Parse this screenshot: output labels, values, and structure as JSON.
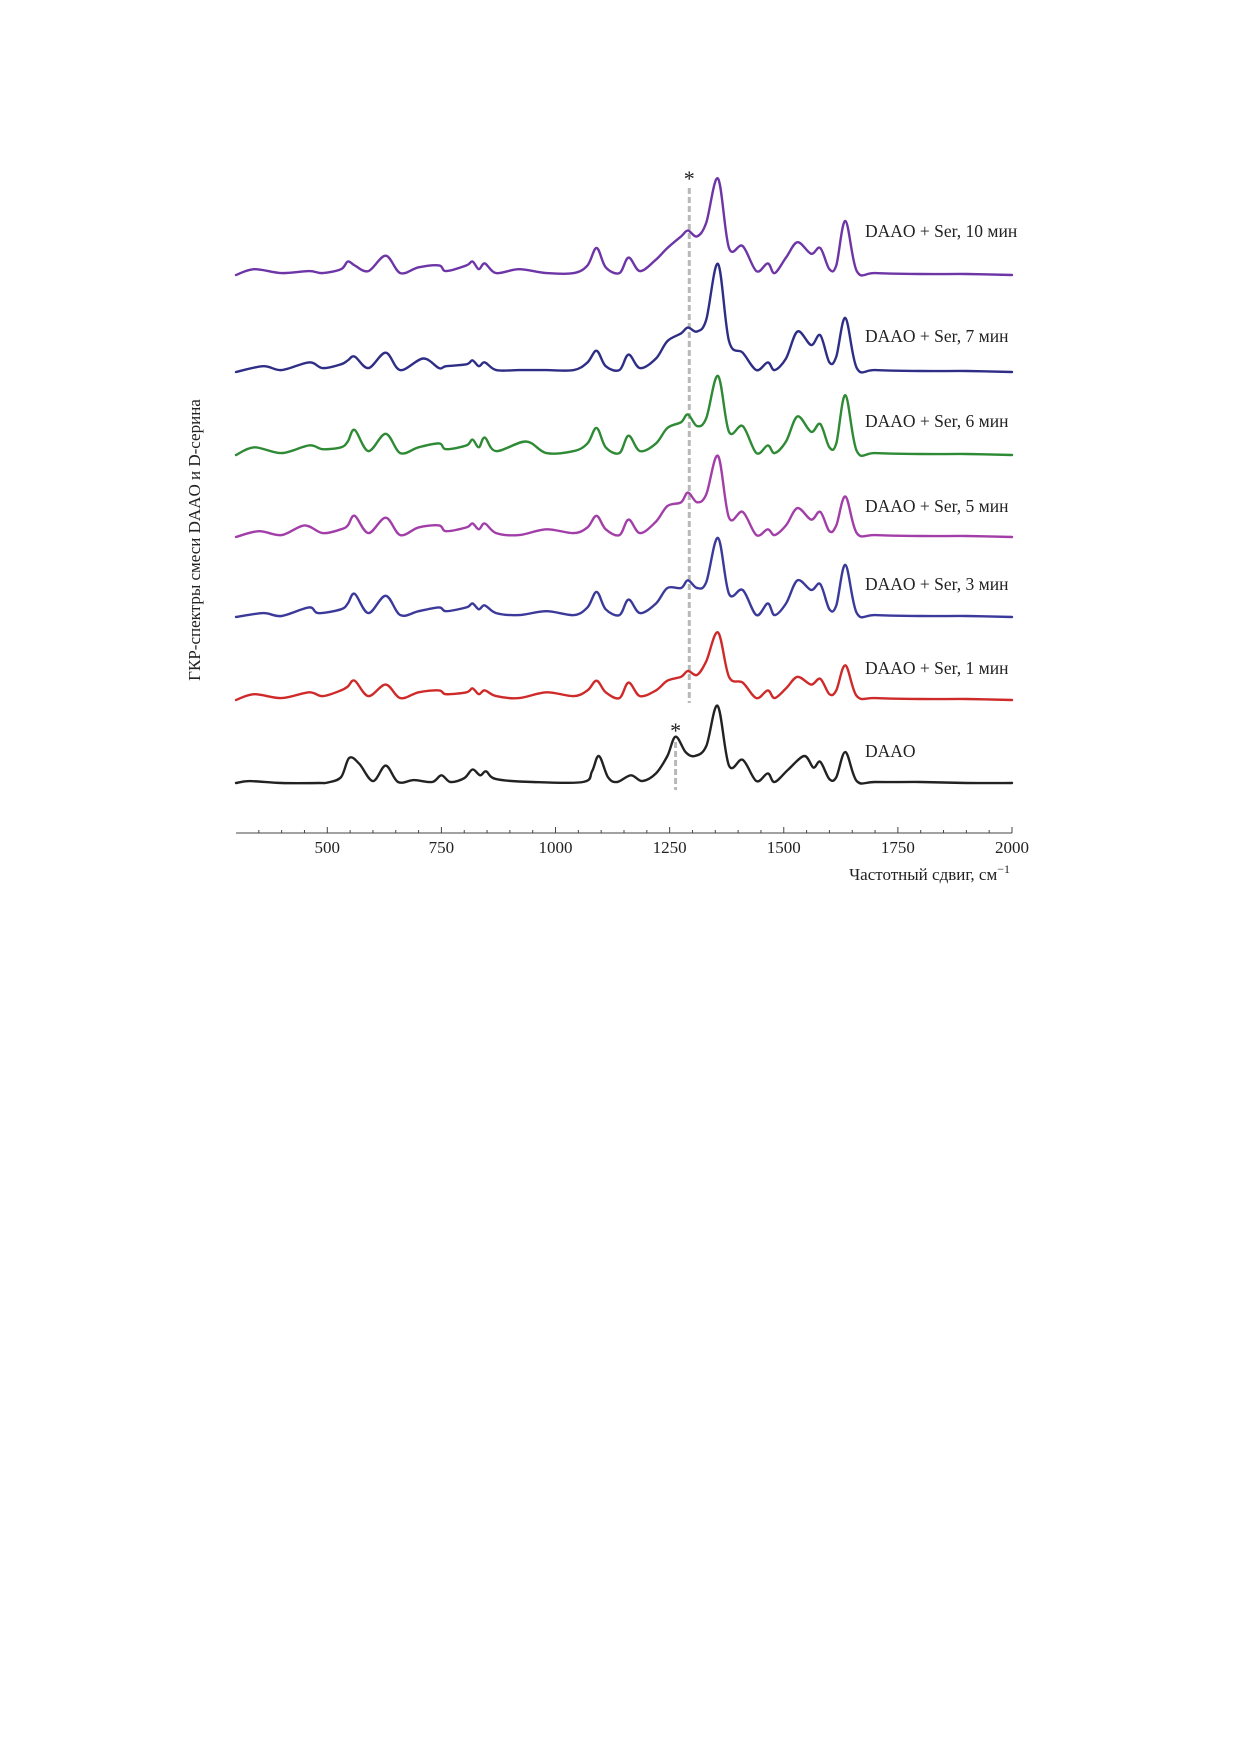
{
  "chart_data": {
    "type": "line",
    "xlabel": "Частотный сдвиг, см",
    "xlabel_sup": "−1",
    "ylabel": "ГКР-спектры смеси DAAO и D-серина",
    "xlim": [
      300,
      2000
    ],
    "xticks": [
      500,
      750,
      1000,
      1250,
      1500,
      1750,
      2000
    ],
    "xtick_labels": [
      "500",
      "750",
      "1000",
      "1250",
      "1500",
      "1750",
      "2000"
    ],
    "y_tick_labels": false,
    "grid": false,
    "markers": [
      {
        "label": "*",
        "x": 1263,
        "applies_to": "DAAO"
      },
      {
        "label": "*",
        "x": 1293,
        "applies_to": "DAAO + Ser"
      }
    ],
    "series": [
      {
        "name": "DAAO",
        "color": "#222222",
        "x": [
          300,
          330,
          400,
          480,
          500,
          530,
          548,
          570,
          600,
          628,
          655,
          690,
          730,
          750,
          770,
          800,
          818,
          835,
          848,
          870,
          950,
          1060,
          1080,
          1095,
          1115,
          1135,
          1165,
          1190,
          1220,
          1245,
          1263,
          1285,
          1305,
          1330,
          1355,
          1380,
          1410,
          1440,
          1465,
          1480,
          1510,
          1545,
          1565,
          1580,
          1600,
          1615,
          1635,
          1660,
          1700,
          1800,
          1900,
          2000
        ],
        "y": [
          0,
          1,
          0,
          0,
          0.2,
          3,
          13,
          10,
          1,
          9,
          0.5,
          1.5,
          0.5,
          4,
          0.5,
          2.5,
          7,
          4,
          6,
          2,
          0.5,
          0.5,
          6,
          14,
          3,
          0.5,
          4,
          1,
          5,
          14,
          24,
          16,
          14,
          19,
          40,
          9,
          12,
          1,
          5,
          0.5,
          7,
          14,
          8,
          11,
          2,
          3,
          16,
          1,
          0.5,
          0.5,
          0,
          0
        ]
      },
      {
        "name": "DAAO + Ser, 1 мин",
        "color": "#cf2a2a",
        "x": [
          300,
          340,
          400,
          460,
          490,
          530,
          545,
          560,
          590,
          628,
          660,
          700,
          745,
          760,
          805,
          818,
          832,
          845,
          870,
          920,
          980,
          1040,
          1070,
          1090,
          1110,
          1140,
          1160,
          1185,
          1220,
          1245,
          1275,
          1290,
          1310,
          1330,
          1356,
          1380,
          1410,
          1440,
          1465,
          1480,
          1505,
          1530,
          1560,
          1580,
          1600,
          1615,
          1635,
          1660,
          1700,
          1800,
          1900,
          2000
        ],
        "y": [
          0,
          3,
          1,
          4,
          2,
          5,
          7,
          10,
          2,
          8,
          1,
          4,
          5,
          3,
          4,
          6,
          3,
          5,
          2,
          1,
          4,
          2,
          5,
          10,
          4,
          1,
          9,
          2,
          5,
          10,
          12,
          15,
          13,
          20,
          35,
          12,
          9,
          1,
          5,
          1,
          6,
          12,
          8,
          11,
          3,
          5,
          18,
          2,
          1,
          0.5,
          0.5,
          0
        ]
      },
      {
        "name": "DAAO + Ser, 3 мин",
        "color": "#3b3a9a",
        "x": [
          300,
          360,
          400,
          460,
          480,
          530,
          545,
          560,
          590,
          628,
          660,
          700,
          745,
          760,
          805,
          818,
          832,
          845,
          870,
          920,
          980,
          1040,
          1070,
          1090,
          1110,
          1140,
          1160,
          1185,
          1220,
          1245,
          1275,
          1290,
          1310,
          1330,
          1356,
          1380,
          1410,
          1440,
          1465,
          1480,
          1505,
          1530,
          1560,
          1580,
          1600,
          1615,
          1635,
          1660,
          1700,
          1800,
          1900,
          2000
        ],
        "y": [
          0,
          2,
          0.5,
          5,
          2,
          4,
          7,
          12,
          2,
          11,
          1,
          3,
          5,
          3,
          5,
          7,
          4,
          6,
          2,
          1,
          3,
          1,
          5,
          13,
          4,
          1,
          9,
          2,
          7,
          15,
          15,
          19,
          15,
          18,
          41,
          12,
          14,
          1,
          7,
          1,
          7,
          19,
          14,
          17,
          4,
          6,
          27,
          2,
          1,
          0.5,
          0.5,
          0
        ]
      },
      {
        "name": "DAAO + Ser, 5 мин",
        "color": "#a23ea8",
        "x": [
          300,
          350,
          400,
          450,
          490,
          530,
          545,
          560,
          590,
          628,
          660,
          700,
          745,
          760,
          805,
          818,
          832,
          845,
          870,
          920,
          980,
          1040,
          1070,
          1090,
          1110,
          1140,
          1160,
          1185,
          1220,
          1245,
          1275,
          1290,
          1310,
          1330,
          1356,
          1380,
          1410,
          1440,
          1465,
          1480,
          1505,
          1530,
          1560,
          1580,
          1600,
          1615,
          1635,
          1660,
          1700,
          1800,
          1900,
          2000
        ],
        "y": [
          0,
          3,
          1,
          6,
          2,
          4,
          6,
          11,
          2,
          10,
          1,
          5,
          6,
          3,
          5,
          7,
          4,
          7,
          2,
          1,
          4,
          2,
          5,
          11,
          4,
          1,
          9,
          2,
          8,
          16,
          18,
          23,
          18,
          22,
          42,
          10,
          13,
          1,
          4,
          1,
          6,
          15,
          9,
          13,
          3,
          6,
          21,
          2,
          1,
          0.5,
          0.5,
          0
        ]
      },
      {
        "name": "DAAO + Ser, 6 мин",
        "color": "#2e8a35",
        "x": [
          300,
          340,
          400,
          460,
          490,
          530,
          545,
          560,
          590,
          628,
          660,
          700,
          745,
          760,
          805,
          818,
          832,
          845,
          870,
          935,
          980,
          1040,
          1070,
          1090,
          1110,
          1140,
          1160,
          1185,
          1220,
          1245,
          1275,
          1290,
          1310,
          1330,
          1356,
          1380,
          1410,
          1440,
          1465,
          1480,
          1505,
          1530,
          1560,
          1580,
          1600,
          1615,
          1635,
          1660,
          1700,
          1800,
          1900,
          2000
        ],
        "y": [
          0,
          4,
          1,
          5,
          3,
          4,
          7,
          13,
          2,
          11,
          1,
          4,
          6,
          3,
          5,
          8,
          4,
          9,
          2,
          7,
          1,
          2,
          6,
          14,
          4,
          1,
          10,
          2,
          6,
          14,
          17,
          21,
          15,
          19,
          41,
          12,
          15,
          1,
          5,
          1,
          7,
          20,
          12,
          16,
          4,
          6,
          31,
          2,
          1,
          0.5,
          0.5,
          0
        ]
      },
      {
        "name": "DAAO + Ser, 7 мин",
        "color": "#2f2e86",
        "x": [
          300,
          360,
          400,
          460,
          490,
          530,
          545,
          560,
          590,
          628,
          660,
          710,
          745,
          760,
          805,
          818,
          832,
          845,
          870,
          920,
          980,
          1040,
          1070,
          1090,
          1110,
          1140,
          1160,
          1185,
          1220,
          1245,
          1275,
          1290,
          1310,
          1330,
          1356,
          1380,
          1410,
          1440,
          1465,
          1480,
          1505,
          1530,
          1560,
          1580,
          1600,
          1615,
          1635,
          1660,
          1700,
          1800,
          1900,
          2000
        ],
        "y": [
          0,
          3,
          1,
          5,
          2,
          4,
          6,
          8,
          2,
          10,
          1,
          7,
          2,
          3,
          4,
          6,
          3,
          5,
          1,
          1,
          1,
          1,
          5,
          11,
          3,
          1,
          9,
          2,
          7,
          16,
          20,
          23,
          21,
          27,
          56,
          16,
          10,
          1,
          5,
          1,
          7,
          21,
          14,
          19,
          5,
          8,
          28,
          2,
          1,
          0.5,
          0.5,
          0
        ]
      },
      {
        "name": "DAAO + Ser, 10 мин",
        "color": "#6d35a6",
        "x": [
          300,
          340,
          400,
          460,
          490,
          530,
          545,
          560,
          590,
          628,
          660,
          700,
          745,
          760,
          805,
          818,
          832,
          845,
          870,
          920,
          980,
          1040,
          1070,
          1090,
          1110,
          1140,
          1160,
          1185,
          1220,
          1245,
          1275,
          1290,
          1310,
          1330,
          1356,
          1380,
          1410,
          1440,
          1465,
          1480,
          1505,
          1530,
          1560,
          1580,
          1600,
          1615,
          1635,
          1660,
          1700,
          1800,
          1900,
          2000
        ],
        "y": [
          0,
          3,
          1,
          2,
          1,
          3,
          7,
          5,
          2,
          10,
          1,
          4,
          5,
          2,
          5,
          7,
          3,
          6,
          1,
          3,
          1,
          1,
          5,
          14,
          4,
          1,
          9,
          2,
          8,
          14,
          20,
          23,
          20,
          27,
          50,
          14,
          15,
          2,
          6,
          1,
          9,
          17,
          11,
          14,
          3,
          5,
          28,
          2,
          1,
          0.5,
          0.5,
          0
        ]
      }
    ]
  }
}
